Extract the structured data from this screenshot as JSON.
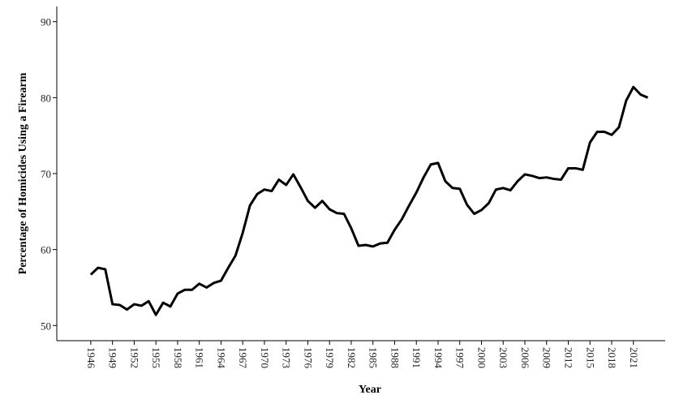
{
  "chart_data": {
    "type": "line",
    "x_label": "Year",
    "y_label": "Percentage of Homicides Using a Firearm",
    "x": [
      1946,
      1947,
      1948,
      1949,
      1950,
      1951,
      1952,
      1953,
      1954,
      1955,
      1956,
      1957,
      1958,
      1959,
      1960,
      1961,
      1962,
      1963,
      1964,
      1965,
      1966,
      1967,
      1968,
      1969,
      1970,
      1971,
      1972,
      1973,
      1974,
      1975,
      1976,
      1977,
      1978,
      1979,
      1980,
      1981,
      1982,
      1983,
      1984,
      1985,
      1986,
      1987,
      1988,
      1989,
      1990,
      1991,
      1992,
      1993,
      1994,
      1995,
      1996,
      1997,
      1998,
      1999,
      2000,
      2001,
      2002,
      2003,
      2004,
      2005,
      2006,
      2007,
      2008,
      2009,
      2010,
      2011,
      2012,
      2013,
      2014,
      2015,
      2016,
      2017,
      2018,
      2019,
      2020,
      2021,
      2022,
      2023
    ],
    "series": [
      {
        "color": "#000000",
        "values": [
          56.7,
          57.6,
          57.4,
          52.8,
          52.7,
          52.1,
          52.8,
          52.6,
          53.2,
          51.4,
          53.0,
          52.5,
          54.2,
          54.7,
          54.7,
          55.5,
          55.0,
          55.6,
          55.9,
          57.6,
          59.2,
          62.2,
          65.8,
          67.3,
          67.9,
          67.7,
          69.2,
          68.5,
          69.9,
          68.2,
          66.4,
          65.5,
          66.4,
          65.3,
          64.8,
          64.7,
          62.8,
          60.5,
          60.6,
          60.4,
          60.8,
          60.9,
          62.6,
          64.0,
          65.8,
          67.5,
          69.5,
          71.2,
          71.4,
          69.0,
          68.1,
          68.0,
          65.9,
          64.7,
          65.2,
          66.1,
          67.9,
          68.1,
          67.8,
          69.0,
          69.9,
          69.7,
          69.4,
          69.5,
          69.3,
          69.2,
          70.7,
          70.7,
          70.5,
          74.1,
          75.5,
          75.5,
          75.1,
          76.1,
          79.6,
          81.4,
          80.4,
          80.0
        ]
      }
    ],
    "xlim": [
      1941.3,
      2025.4
    ],
    "xticks": [
      1946,
      1949,
      1952,
      1955,
      1958,
      1961,
      1964,
      1967,
      1970,
      1973,
      1976,
      1979,
      1982,
      1985,
      1988,
      1991,
      1994,
      1997,
      2000,
      2003,
      2006,
      2009,
      2012,
      2015,
      2018,
      2021
    ],
    "ylim": [
      48,
      92
    ],
    "yticks": [
      50,
      60,
      70,
      80,
      90
    ]
  }
}
